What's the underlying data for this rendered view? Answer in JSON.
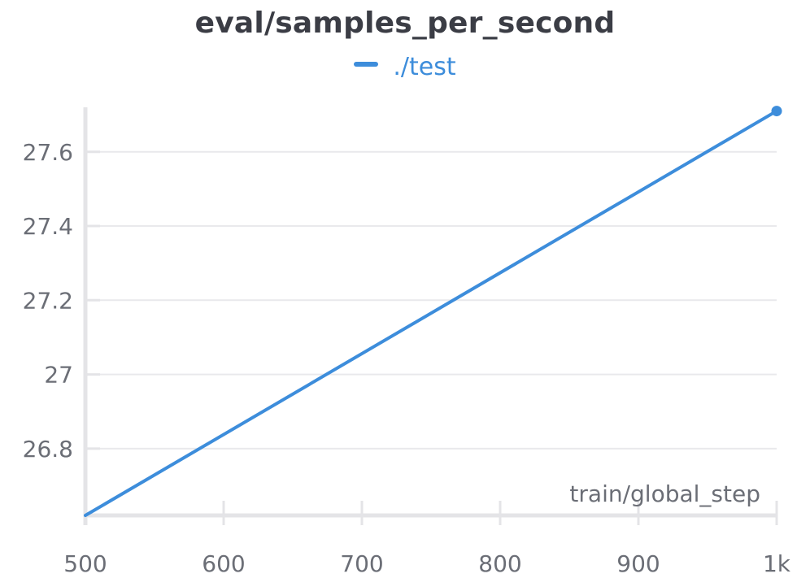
{
  "chart_data": {
    "type": "line",
    "title": "eval/samples_per_second",
    "xlabel": "train/global_step",
    "ylabel": "",
    "xlim": [
      500,
      1000
    ],
    "ylim": [
      26.62,
      27.72
    ],
    "x_ticks": [
      500,
      600,
      700,
      800,
      900,
      1000
    ],
    "x_tick_labels": [
      "500",
      "600",
      "700",
      "800",
      "900",
      "1k"
    ],
    "y_ticks": [
      26.8,
      27.0,
      27.2,
      27.4,
      27.6
    ],
    "y_tick_labels": [
      "26.8",
      "27",
      "27.2",
      "27.4",
      "27.6"
    ],
    "grid": true,
    "legend_position": "top-center",
    "series": [
      {
        "name": "./test",
        "color": "#3d8ddb",
        "x": [
          500,
          1000
        ],
        "y": [
          26.62,
          27.71
        ]
      }
    ]
  }
}
